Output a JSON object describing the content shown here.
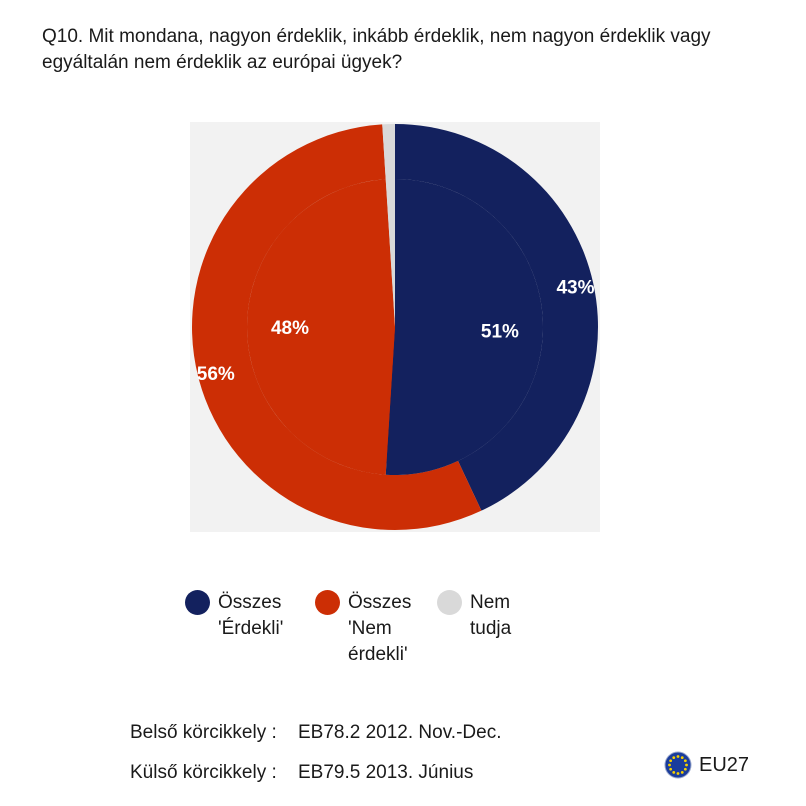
{
  "question": "Q10. Mit mondana, nagyon érdeklik, inkább érdeklik, nem nagyon érdeklik vagy egyáltalán nem érdeklik az európai ügyek?",
  "chart_data": {
    "type": "pie",
    "variant": "double donut",
    "categories": [
      "Összes 'Érdekli'",
      "Összes 'Nem érdekli'",
      "Nem tudja"
    ],
    "colors": [
      "#13215e",
      "#cc2e05",
      "#d9d9d9"
    ],
    "series": [
      {
        "name": "Belső körcikkely",
        "values": [
          51,
          48,
          1
        ],
        "labels": [
          "51%",
          "48%",
          ""
        ]
      },
      {
        "name": "Külső körcikkely",
        "values": [
          43,
          56,
          1
        ],
        "labels": [
          "43%",
          "56%",
          ""
        ]
      }
    ],
    "legend_position": "bottom"
  },
  "legend": [
    {
      "lines": [
        "Összes",
        "'Érdekli'"
      ],
      "color": "#13215e"
    },
    {
      "lines": [
        "Összes",
        "'Nem",
        "érdekli'"
      ],
      "color": "#cc2e05"
    },
    {
      "lines": [
        "Nem tudja"
      ],
      "color": "#d9d9d9"
    }
  ],
  "sources": [
    {
      "label": "Belső körcikkely :",
      "value": "EB78.2 2012. Nov.-Dec."
    },
    {
      "label": "Külső körcikkely :",
      "value": "EB79.5 2013. Június"
    }
  ],
  "badge": {
    "icon": "eu-flag-icon",
    "label": "EU27"
  }
}
